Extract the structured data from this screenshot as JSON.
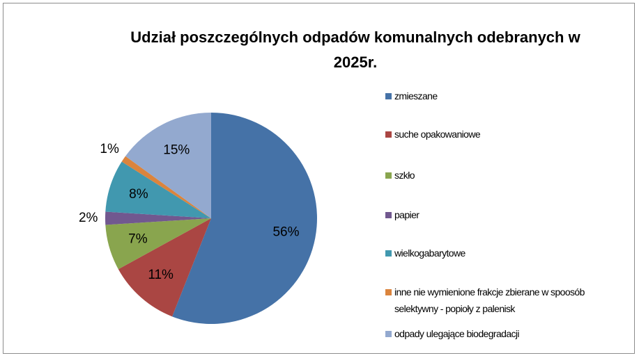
{
  "chart_data": {
    "type": "pie",
    "title": "Udział poszczególnych odpadów komunalnych odebranych w 2025r.",
    "categories": [
      "zmieszane",
      "suche opakowaniowe",
      "szkło",
      "papier",
      "wielkogabarytowe",
      "inne nie wymienione frakcje zbierane w spoosób selektywny - popioły z palenisk",
      "odpady ulegające biodegradacji"
    ],
    "values": [
      56,
      11,
      7,
      2,
      8,
      1,
      15
    ],
    "value_labels": [
      "56%",
      "11%",
      "7%",
      "2%",
      "8%",
      "1%",
      "15%"
    ],
    "colors": [
      "#4572a7",
      "#aa4643",
      "#89a54e",
      "#71588f",
      "#4198af",
      "#db843d",
      "#93a9cf"
    ],
    "legend": "right"
  }
}
